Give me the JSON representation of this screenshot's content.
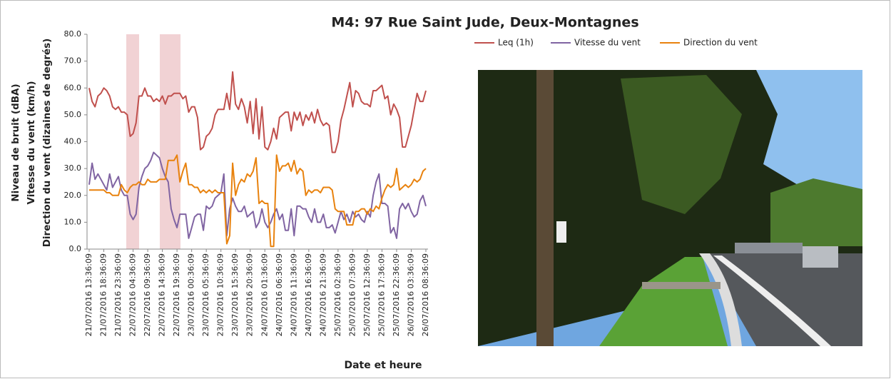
{
  "chart_data": {
    "type": "line",
    "title": "M4: 97 Rue Saint Jude, Deux-Montagnes",
    "x_label": "Date et heure",
    "y_label": [
      "Niveau de bruit (dBA)",
      "Vitesse du vent (km/h)",
      "Direction du vent (dizaines de degrés)"
    ],
    "ylim": [
      0,
      80
    ],
    "yticks": [
      {
        "value": 0,
        "label": "0.0"
      },
      {
        "value": 10,
        "label": "10.0"
      },
      {
        "value": 20,
        "label": "20.0"
      },
      {
        "value": 30,
        "label": "30.0"
      },
      {
        "value": 40,
        "label": "40.0"
      },
      {
        "value": 50,
        "label": "50.0"
      },
      {
        "value": 60,
        "label": "60.0"
      },
      {
        "value": 70,
        "label": "70.0"
      },
      {
        "value": 80,
        "label": "80.0"
      }
    ],
    "categories": [
      "21/07/2016 13:36:09",
      null,
      null,
      null,
      null,
      "21/07/2016 18:36:09",
      null,
      null,
      null,
      null,
      "21/07/2016 23:36:09",
      null,
      null,
      null,
      null,
      "22/07/2016 04:36:09",
      null,
      null,
      null,
      null,
      "22/07/2016 09:36:09",
      null,
      null,
      null,
      null,
      "22/07/2016 14:36:09",
      null,
      null,
      null,
      null,
      "22/07/2016 19:36:09",
      null,
      null,
      null,
      null,
      "23/07/2016 00:36:09",
      null,
      null,
      null,
      null,
      "23/07/2016 05:36:09",
      null,
      null,
      null,
      null,
      "23/07/2016 10:36:09",
      null,
      null,
      null,
      null,
      "23/07/2016 15:36:09",
      null,
      null,
      null,
      null,
      "23/07/2016 20:36:09",
      null,
      null,
      null,
      null,
      "24/07/2016 01:36:09",
      null,
      null,
      null,
      null,
      "24/07/2016 06:36:09",
      null,
      null,
      null,
      null,
      "24/07/2016 11:36:09",
      null,
      null,
      null,
      null,
      "24/07/2016 16:36:09",
      null,
      null,
      null,
      null,
      "24/07/2016 21:36:09",
      null,
      null,
      null,
      null,
      "25/07/2016 02:36:09",
      null,
      null,
      null,
      null,
      "25/07/2016 07:36:09",
      null,
      null,
      null,
      null,
      "25/07/2016 12:36:09",
      null,
      null,
      null,
      null,
      "25/07/2016 17:36:09",
      null,
      null,
      null,
      null,
      "25/07/2016 22:36:09",
      null,
      null,
      null,
      null,
      "26/07/2016 03:36:09",
      null,
      null,
      null,
      null,
      "26/07/2016 08:36:09"
    ],
    "series": [
      {
        "name": "Leq (1h)",
        "color": "#c0504d",
        "values": [
          60,
          55,
          53,
          57,
          58,
          60,
          59,
          57,
          53,
          52,
          53,
          51,
          51,
          50,
          42,
          43,
          47,
          57,
          57,
          60,
          57,
          57,
          55,
          56,
          55,
          57,
          54,
          57,
          57,
          58,
          58,
          58,
          56,
          57,
          51,
          53,
          53,
          49,
          37,
          38,
          42,
          43,
          45,
          50,
          52,
          52,
          52,
          58,
          52,
          66,
          54,
          52,
          56,
          53,
          47,
          55,
          43,
          56,
          41,
          53,
          38,
          37,
          40,
          45,
          41,
          49,
          50,
          51,
          51,
          44,
          51,
          48,
          51,
          46,
          50,
          48,
          51,
          47,
          52,
          48,
          46,
          47,
          46,
          36,
          36,
          40,
          48,
          52,
          57,
          62,
          53,
          59,
          58,
          55,
          54,
          54,
          53,
          59,
          59,
          60,
          61,
          56,
          57,
          50,
          54,
          52,
          49,
          38,
          38,
          42,
          46,
          52,
          58,
          55,
          55,
          59
        ]
      },
      {
        "name": "Vitesse du vent",
        "color": "#8064a2",
        "values": [
          24,
          32,
          26,
          28,
          26,
          24,
          22,
          28,
          23,
          25,
          27,
          22,
          20,
          20,
          13,
          11,
          13,
          23,
          27,
          30,
          31,
          33,
          36,
          35,
          34,
          30,
          27,
          25,
          15,
          11,
          8,
          13,
          13,
          13,
          4,
          8,
          12,
          13,
          13,
          7,
          16,
          15,
          16,
          19,
          20,
          21,
          28,
          5,
          15,
          19,
          16,
          14,
          14,
          16,
          12,
          13,
          14,
          8,
          10,
          15,
          10,
          8,
          10,
          13,
          15,
          11,
          13,
          7,
          7,
          15,
          5,
          16,
          16,
          15,
          15,
          12,
          10,
          15,
          10,
          10,
          13,
          8,
          8,
          9,
          6,
          10,
          14,
          11,
          13,
          10,
          14,
          12,
          13,
          11,
          10,
          14,
          12,
          20,
          25,
          28,
          17,
          17,
          16,
          6,
          8,
          4,
          15,
          17,
          15,
          17,
          14,
          12,
          13,
          18,
          20,
          16
        ]
      },
      {
        "name": "Direction du vent",
        "color": "#e8820e",
        "values": [
          22,
          22,
          22,
          22,
          22,
          22,
          21,
          21,
          20,
          20,
          20,
          24,
          22,
          21,
          23,
          24,
          24,
          25,
          24,
          24,
          26,
          25,
          25,
          25,
          26,
          26,
          26,
          33,
          33,
          33,
          35,
          25,
          29,
          32,
          24,
          24,
          23,
          23,
          21,
          22,
          21,
          22,
          21,
          22,
          21,
          21,
          21,
          2,
          5,
          32,
          20,
          24,
          26,
          25,
          28,
          27,
          29,
          34,
          17,
          18,
          17,
          17,
          1,
          1,
          35,
          29,
          31,
          31,
          32,
          29,
          33,
          28,
          30,
          29,
          20,
          22,
          21,
          22,
          22,
          21,
          23,
          23,
          23,
          22,
          15,
          14,
          14,
          14,
          9,
          9,
          9,
          14,
          14,
          15,
          15,
          13,
          15,
          14,
          16,
          15,
          19,
          22,
          24,
          23,
          24,
          30,
          22,
          23,
          24,
          23,
          24,
          26,
          25,
          26,
          29,
          30
        ]
      }
    ]
  }
}
